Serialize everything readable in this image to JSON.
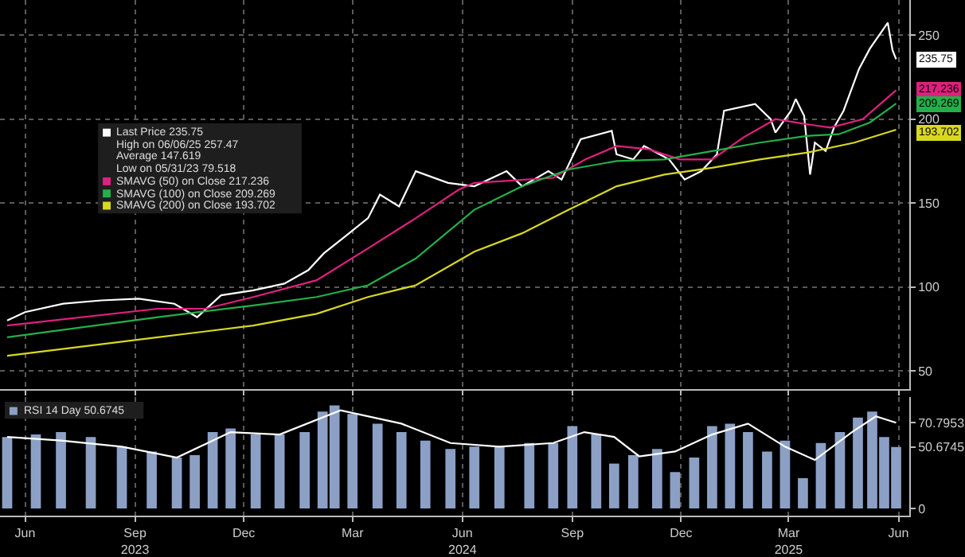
{
  "chart_data": [
    {
      "type": "line",
      "xlim": [
        "2023-05-25",
        "2025-06-24"
      ],
      "ylim": [
        39,
        271
      ],
      "yticks": [
        50,
        100,
        150,
        200,
        250
      ],
      "xticks": [
        {
          "value": "2023-06-15",
          "label": null
        },
        {
          "value": "2023-09-15",
          "label": null
        },
        {
          "value": "2023-12-15",
          "label": null
        },
        {
          "value": "2024-03-15",
          "label": null
        },
        {
          "value": "2024-06-15",
          "label": null
        },
        {
          "value": "2024-09-15",
          "label": null
        },
        {
          "value": "2024-12-15",
          "label": null
        },
        {
          "value": "2025-03-15",
          "label": null
        },
        {
          "value": "2025-06-15",
          "label": null
        }
      ],
      "tick_labels": "y",
      "grid": true,
      "legend": "top left",
      "annotations": [
        "High on 06/06/25 257.47",
        "Average 147.619",
        "Low on 05/31/23 79.518",
        {
          "text": "235.75",
          "x": "2025-06-13",
          "y": 235.75
        },
        {
          "text": "217.236",
          "x": "2025-06-13",
          "y": 217.236
        },
        {
          "text": "209.269",
          "x": "2025-06-13",
          "y": 209.269
        },
        {
          "text": "193.702",
          "x": "2025-06-13",
          "y": 193.702
        }
      ],
      "series": [
        {
          "name": "Last Price 235.75",
          "color": "#ffffff",
          "x": [
            "2023-05-31",
            "2023-06-15",
            "2023-07-17",
            "2023-08-18",
            "2023-09-18",
            "2023-10-18",
            "2023-11-06",
            "2023-11-26",
            "2023-12-23",
            "2024-01-18",
            "2024-02-07",
            "2024-02-20",
            "2024-03-07",
            "2024-03-28",
            "2024-04-07",
            "2024-04-23",
            "2024-05-07",
            "2024-06-03",
            "2024-06-25",
            "2024-07-22",
            "2024-08-04",
            "2024-08-26",
            "2024-09-06",
            "2024-09-22",
            "2024-10-18",
            "2024-10-22",
            "2024-11-05",
            "2024-11-14",
            "2024-12-05",
            "2024-12-18",
            "2025-01-01",
            "2025-01-14",
            "2025-01-20",
            "2025-02-15",
            "2025-02-28",
            "2025-03-04",
            "2025-03-17",
            "2025-03-21",
            "2025-03-28",
            "2025-04-02",
            "2025-04-06",
            "2025-04-15",
            "2025-04-22",
            "2025-04-30",
            "2025-05-13",
            "2025-05-22",
            "2025-06-06",
            "2025-06-10",
            "2025-06-13"
          ],
          "values": [
            80,
            85,
            90,
            92,
            93,
            90,
            82,
            95,
            98,
            102,
            110,
            120,
            129,
            141,
            155,
            148,
            169,
            162,
            160,
            169,
            160,
            169,
            164,
            188,
            193,
            179,
            176,
            184,
            176,
            164,
            169,
            179,
            205,
            209,
            200,
            192,
            205,
            212,
            202,
            167,
            186,
            181,
            195,
            205,
            230,
            242,
            257.47,
            241,
            235.75
          ]
        },
        {
          "name": "SMAVG (50) on Close 217.236",
          "color": "#e0207f",
          "x": [
            "2023-05-31",
            "2023-10-04",
            "2023-11-13",
            "2023-12-23",
            "2024-02-14",
            "2024-03-28",
            "2024-05-07",
            "2024-06-12",
            "2024-06-25",
            "2024-08-30",
            "2024-09-26",
            "2024-10-22",
            "2024-11-18",
            "2024-12-14",
            "2025-01-10",
            "2025-02-05",
            "2025-03-04",
            "2025-03-30",
            "2025-04-19",
            "2025-05-16",
            "2025-06-13"
          ],
          "values": [
            77,
            87,
            87,
            94,
            104,
            123,
            141,
            158,
            162,
            165,
            176,
            184,
            182,
            176,
            176,
            189,
            200,
            197,
            195,
            200,
            217.236
          ]
        },
        {
          "name": "SMAVG (100) on Close 209.269",
          "color": "#22b04a",
          "x": [
            "2023-05-31",
            "2023-10-04",
            "2023-12-23",
            "2024-02-14",
            "2024-03-28",
            "2024-05-07",
            "2024-06-25",
            "2024-08-04",
            "2024-09-12",
            "2024-10-22",
            "2024-12-01",
            "2025-01-10",
            "2025-02-19",
            "2025-03-30",
            "2025-04-26",
            "2025-05-22",
            "2025-06-13"
          ],
          "values": [
            70,
            82,
            89,
            94,
            101,
            117,
            146,
            160,
            170,
            175,
            176,
            181,
            186,
            190,
            191,
            198,
            209.269
          ]
        },
        {
          "name": "SMAVG (200) on Close 193.702",
          "color": "#d8d820",
          "x": [
            "2023-05-31",
            "2023-10-04",
            "2023-12-23",
            "2024-02-14",
            "2024-03-28",
            "2024-05-07",
            "2024-06-25",
            "2024-08-04",
            "2024-09-12",
            "2024-10-22",
            "2024-12-01",
            "2025-01-10",
            "2025-02-19",
            "2025-03-30",
            "2025-05-09",
            "2025-06-13"
          ],
          "values": [
            59,
            70,
            77,
            84,
            94,
            101,
            121,
            132,
            146,
            160,
            167,
            171,
            176,
            180,
            186,
            193.702
          ]
        }
      ]
    },
    {
      "type": "bar",
      "xlim": [
        "2023-05-25",
        "2025-06-24"
      ],
      "ylim": [
        -6,
        92
      ],
      "yticks": [
        0,
        {
          "value": 50.6745,
          "label": "50.6745"
        },
        {
          "value": 70.7953,
          "label": "70.7953"
        }
      ],
      "xticks": [
        {
          "value": "2023-06-15",
          "label": "Jun"
        },
        {
          "value": "2023-09-15",
          "label": "Sep\n2023"
        },
        {
          "value": "2023-12-15",
          "label": "Dec"
        },
        {
          "value": "2024-03-15",
          "label": "Mar"
        },
        {
          "value": "2024-06-15",
          "label": "Jun\n2024"
        },
        {
          "value": "2024-09-15",
          "label": "Sep"
        },
        {
          "value": "2024-12-15",
          "label": "Dec"
        },
        {
          "value": "2025-03-15",
          "label": "Mar\n2025"
        },
        {
          "value": "2025-06-15",
          "label": "Jun"
        }
      ],
      "grid": "x",
      "legend": "top left",
      "series": [
        {
          "type": "bar",
          "name": "RSI 14 Day 50.6745",
          "color": "#8ca0c6",
          "x": [
            "2023-05-31",
            "2023-06-24",
            "2023-07-15",
            "2023-08-09",
            "2023-09-04",
            "2023-09-29",
            "2023-10-20",
            "2023-11-04",
            "2023-11-19",
            "2023-12-04",
            "2023-12-25",
            "2024-01-14",
            "2024-02-04",
            "2024-02-19",
            "2024-02-29",
            "2024-03-15",
            "2024-04-05",
            "2024-04-25",
            "2024-05-15",
            "2024-06-05",
            "2024-06-25",
            "2024-07-16",
            "2024-08-10",
            "2024-08-30",
            "2024-09-15",
            "2024-10-05",
            "2024-10-20",
            "2024-11-05",
            "2024-11-25",
            "2024-12-10",
            "2024-12-26",
            "2025-01-10",
            "2025-01-25",
            "2025-02-09",
            "2025-02-25",
            "2025-03-12",
            "2025-03-27",
            "2025-04-11",
            "2025-04-27",
            "2025-05-12",
            "2025-05-24",
            "2025-06-03",
            "2025-06-13"
          ],
          "values": [
            59,
            61,
            63,
            59,
            51,
            47,
            42,
            44,
            63,
            66,
            61,
            61,
            63,
            80,
            85,
            78,
            70,
            63,
            56,
            49,
            51,
            51,
            54,
            54,
            68,
            61,
            37,
            44,
            49,
            30,
            42,
            68,
            70,
            63,
            47,
            56,
            25,
            54,
            63,
            75,
            80,
            59,
            50.6745
          ]
        },
        {
          "type": "line",
          "color": "#ffffff",
          "x": [
            "2023-05-31",
            "2023-07-15",
            "2023-09-04",
            "2023-10-20",
            "2023-12-04",
            "2024-01-14",
            "2024-03-05",
            "2024-04-25",
            "2024-06-05",
            "2024-07-16",
            "2024-08-30",
            "2024-09-25",
            "2024-10-20",
            "2024-11-10",
            "2024-12-10",
            "2025-01-10",
            "2025-02-09",
            "2025-03-12",
            "2025-04-06",
            "2025-05-07",
            "2025-05-27",
            "2025-06-13"
          ],
          "values": [
            59,
            56,
            51,
            42,
            63,
            61,
            81,
            70,
            54,
            51,
            54,
            63,
            59,
            43,
            47,
            61,
            70,
            51,
            40,
            63,
            76,
            70.7953
          ]
        }
      ]
    }
  ]
}
